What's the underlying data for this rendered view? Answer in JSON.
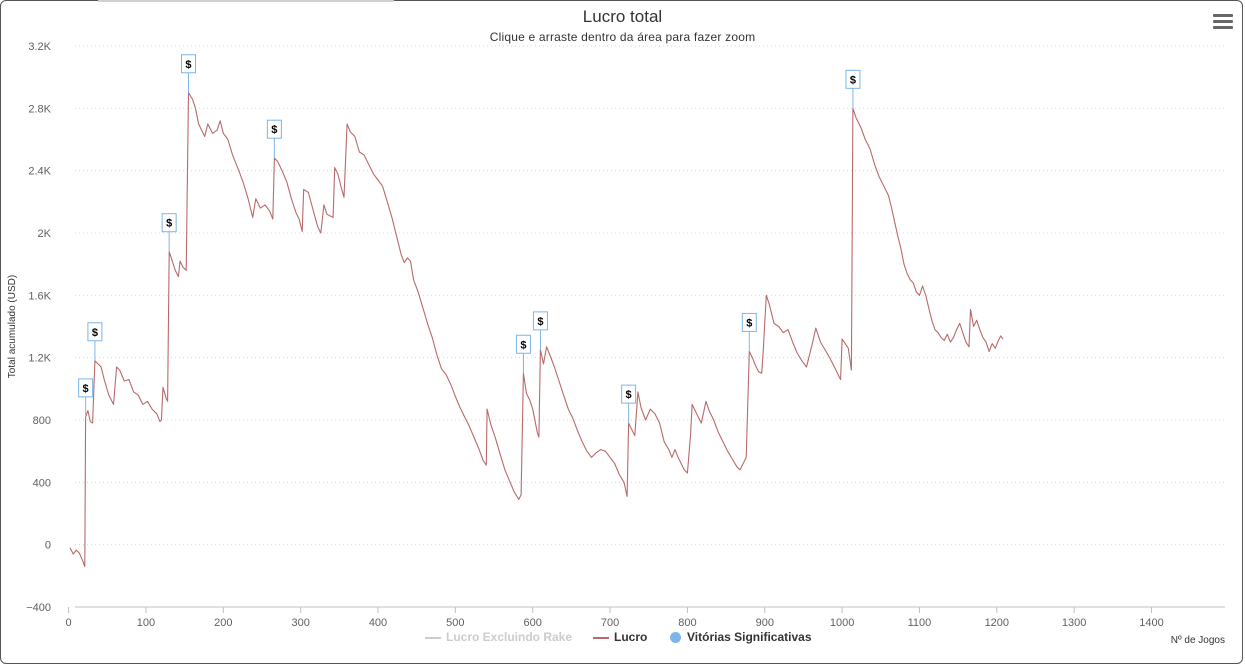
{
  "chart_data": {
    "type": "line",
    "title": "Lucro total",
    "subtitle": "Clique e arraste dentro da área para fazer zoom",
    "xlabel": "Nº de Jogos",
    "ylabel": "Total acumulado (USD)",
    "xlim": [
      -15,
      1495
    ],
    "ylim": [
      -400,
      3200
    ],
    "xticks": [
      0,
      100,
      200,
      300,
      400,
      500,
      600,
      700,
      800,
      900,
      1000,
      1100,
      1200,
      1300,
      1400
    ],
    "yticks": [
      -400,
      0,
      400,
      800,
      1200,
      1600,
      2000,
      2400,
      2800,
      3200
    ],
    "ytick_labels": [
      "−400",
      "0",
      "400",
      "800",
      "1.2K",
      "1.6K",
      "2K",
      "2.4K",
      "2.8K",
      "3.2K"
    ],
    "grid": "horizontal-dotted",
    "legend_position": "bottom-center",
    "series": [
      {
        "name": "Lucro Excluindo Rake",
        "color": "#cccccc",
        "visible": false,
        "points": []
      },
      {
        "name": "Lucro",
        "color": "#b86a6a",
        "visible": true,
        "points": [
          [
            2,
            -20
          ],
          [
            6,
            -60
          ],
          [
            10,
            -35
          ],
          [
            14,
            -55
          ],
          [
            18,
            -100
          ],
          [
            21,
            -140
          ],
          [
            22,
            820
          ],
          [
            25,
            860
          ],
          [
            28,
            790
          ],
          [
            31,
            780
          ],
          [
            34,
            1180
          ],
          [
            38,
            1160
          ],
          [
            42,
            1140
          ],
          [
            46,
            1060
          ],
          [
            52,
            960
          ],
          [
            58,
            900
          ],
          [
            62,
            1140
          ],
          [
            66,
            1120
          ],
          [
            72,
            1050
          ],
          [
            78,
            1060
          ],
          [
            84,
            980
          ],
          [
            90,
            960
          ],
          [
            96,
            900
          ],
          [
            102,
            920
          ],
          [
            108,
            870
          ],
          [
            114,
            840
          ],
          [
            118,
            790
          ],
          [
            120,
            800
          ],
          [
            122,
            1010
          ],
          [
            126,
            940
          ],
          [
            128,
            920
          ],
          [
            130,
            1880
          ],
          [
            134,
            1820
          ],
          [
            138,
            1760
          ],
          [
            142,
            1720
          ],
          [
            144,
            1820
          ],
          [
            148,
            1780
          ],
          [
            152,
            1760
          ],
          [
            155,
            2900
          ],
          [
            160,
            2860
          ],
          [
            164,
            2800
          ],
          [
            168,
            2700
          ],
          [
            172,
            2660
          ],
          [
            176,
            2620
          ],
          [
            180,
            2700
          ],
          [
            186,
            2640
          ],
          [
            192,
            2660
          ],
          [
            196,
            2720
          ],
          [
            200,
            2640
          ],
          [
            206,
            2600
          ],
          [
            212,
            2500
          ],
          [
            220,
            2400
          ],
          [
            226,
            2320
          ],
          [
            232,
            2220
          ],
          [
            238,
            2100
          ],
          [
            242,
            2220
          ],
          [
            248,
            2160
          ],
          [
            254,
            2180
          ],
          [
            260,
            2140
          ],
          [
            264,
            2090
          ],
          [
            266,
            2480
          ],
          [
            270,
            2460
          ],
          [
            276,
            2400
          ],
          [
            282,
            2330
          ],
          [
            288,
            2220
          ],
          [
            294,
            2130
          ],
          [
            298,
            2090
          ],
          [
            302,
            2010
          ],
          [
            304,
            2280
          ],
          [
            310,
            2260
          ],
          [
            316,
            2150
          ],
          [
            322,
            2040
          ],
          [
            326,
            2000
          ],
          [
            330,
            2180
          ],
          [
            334,
            2120
          ],
          [
            338,
            2110
          ],
          [
            342,
            2100
          ],
          [
            344,
            2420
          ],
          [
            348,
            2380
          ],
          [
            352,
            2300
          ],
          [
            356,
            2230
          ],
          [
            360,
            2700
          ],
          [
            364,
            2650
          ],
          [
            370,
            2620
          ],
          [
            376,
            2520
          ],
          [
            382,
            2500
          ],
          [
            388,
            2440
          ],
          [
            394,
            2380
          ],
          [
            400,
            2340
          ],
          [
            406,
            2300
          ],
          [
            412,
            2200
          ],
          [
            418,
            2100
          ],
          [
            424,
            1980
          ],
          [
            430,
            1860
          ],
          [
            434,
            1810
          ],
          [
            438,
            1840
          ],
          [
            442,
            1820
          ],
          [
            446,
            1700
          ],
          [
            452,
            1620
          ],
          [
            458,
            1520
          ],
          [
            464,
            1420
          ],
          [
            470,
            1330
          ],
          [
            476,
            1220
          ],
          [
            482,
            1130
          ],
          [
            488,
            1090
          ],
          [
            494,
            1030
          ],
          [
            500,
            950
          ],
          [
            506,
            880
          ],
          [
            512,
            820
          ],
          [
            518,
            760
          ],
          [
            524,
            690
          ],
          [
            530,
            620
          ],
          [
            536,
            540
          ],
          [
            540,
            510
          ],
          [
            541,
            870
          ],
          [
            546,
            770
          ],
          [
            552,
            680
          ],
          [
            558,
            580
          ],
          [
            564,
            480
          ],
          [
            570,
            410
          ],
          [
            576,
            340
          ],
          [
            582,
            290
          ],
          [
            585,
            320
          ],
          [
            588,
            1100
          ],
          [
            592,
            970
          ],
          [
            596,
            930
          ],
          [
            600,
            870
          ],
          [
            606,
            720
          ],
          [
            608,
            690
          ],
          [
            610,
            1250
          ],
          [
            614,
            1160
          ],
          [
            618,
            1270
          ],
          [
            622,
            1220
          ],
          [
            628,
            1140
          ],
          [
            634,
            1050
          ],
          [
            640,
            960
          ],
          [
            646,
            870
          ],
          [
            652,
            810
          ],
          [
            658,
            730
          ],
          [
            664,
            660
          ],
          [
            670,
            600
          ],
          [
            676,
            560
          ],
          [
            682,
            590
          ],
          [
            688,
            610
          ],
          [
            694,
            600
          ],
          [
            700,
            560
          ],
          [
            706,
            520
          ],
          [
            712,
            450
          ],
          [
            718,
            400
          ],
          [
            722,
            310
          ],
          [
            724,
            780
          ],
          [
            728,
            740
          ],
          [
            732,
            700
          ],
          [
            736,
            980
          ],
          [
            740,
            880
          ],
          [
            746,
            800
          ],
          [
            752,
            870
          ],
          [
            758,
            840
          ],
          [
            764,
            780
          ],
          [
            770,
            660
          ],
          [
            776,
            610
          ],
          [
            780,
            560
          ],
          [
            784,
            610
          ],
          [
            788,
            560
          ],
          [
            792,
            520
          ],
          [
            796,
            480
          ],
          [
            800,
            460
          ],
          [
            804,
            700
          ],
          [
            806,
            900
          ],
          [
            810,
            860
          ],
          [
            814,
            820
          ],
          [
            818,
            780
          ],
          [
            824,
            920
          ],
          [
            828,
            860
          ],
          [
            834,
            800
          ],
          [
            840,
            720
          ],
          [
            846,
            660
          ],
          [
            852,
            600
          ],
          [
            858,
            550
          ],
          [
            864,
            500
          ],
          [
            868,
            480
          ],
          [
            872,
            520
          ],
          [
            876,
            560
          ],
          [
            880,
            1240
          ],
          [
            884,
            1200
          ],
          [
            888,
            1150
          ],
          [
            892,
            1110
          ],
          [
            896,
            1100
          ],
          [
            898,
            1240
          ],
          [
            902,
            1600
          ],
          [
            906,
            1540
          ],
          [
            912,
            1420
          ],
          [
            918,
            1400
          ],
          [
            924,
            1360
          ],
          [
            930,
            1380
          ],
          [
            936,
            1300
          ],
          [
            942,
            1230
          ],
          [
            948,
            1180
          ],
          [
            954,
            1140
          ],
          [
            958,
            1220
          ],
          [
            962,
            1300
          ],
          [
            966,
            1390
          ],
          [
            972,
            1300
          ],
          [
            978,
            1250
          ],
          [
            984,
            1200
          ],
          [
            990,
            1140
          ],
          [
            996,
            1080
          ],
          [
            998,
            1060
          ],
          [
            1000,
            1320
          ],
          [
            1004,
            1290
          ],
          [
            1008,
            1260
          ],
          [
            1012,
            1120
          ],
          [
            1014,
            2800
          ],
          [
            1018,
            2740
          ],
          [
            1024,
            2680
          ],
          [
            1030,
            2600
          ],
          [
            1036,
            2540
          ],
          [
            1042,
            2440
          ],
          [
            1048,
            2360
          ],
          [
            1054,
            2300
          ],
          [
            1060,
            2240
          ],
          [
            1064,
            2160
          ],
          [
            1068,
            2070
          ],
          [
            1072,
            1980
          ],
          [
            1076,
            1900
          ],
          [
            1080,
            1800
          ],
          [
            1084,
            1740
          ],
          [
            1088,
            1700
          ],
          [
            1092,
            1680
          ],
          [
            1096,
            1620
          ],
          [
            1100,
            1600
          ],
          [
            1104,
            1660
          ],
          [
            1108,
            1600
          ],
          [
            1112,
            1520
          ],
          [
            1116,
            1440
          ],
          [
            1120,
            1380
          ],
          [
            1124,
            1360
          ],
          [
            1128,
            1330
          ],
          [
            1132,
            1310
          ],
          [
            1136,
            1350
          ],
          [
            1140,
            1300
          ],
          [
            1144,
            1330
          ],
          [
            1148,
            1380
          ],
          [
            1152,
            1420
          ],
          [
            1156,
            1360
          ],
          [
            1160,
            1300
          ],
          [
            1164,
            1270
          ],
          [
            1166,
            1510
          ],
          [
            1170,
            1400
          ],
          [
            1174,
            1440
          ],
          [
            1178,
            1380
          ],
          [
            1182,
            1330
          ],
          [
            1186,
            1300
          ],
          [
            1190,
            1240
          ],
          [
            1194,
            1290
          ],
          [
            1198,
            1260
          ],
          [
            1202,
            1310
          ],
          [
            1205,
            1340
          ],
          [
            1208,
            1320
          ]
        ]
      }
    ],
    "significant_wins": {
      "name": "Vitórias Significativas",
      "color": "#7cb5ec",
      "flag_label": "$",
      "x": [
        22,
        34,
        130,
        155,
        266,
        588,
        610,
        724,
        880,
        1014
      ]
    }
  }
}
